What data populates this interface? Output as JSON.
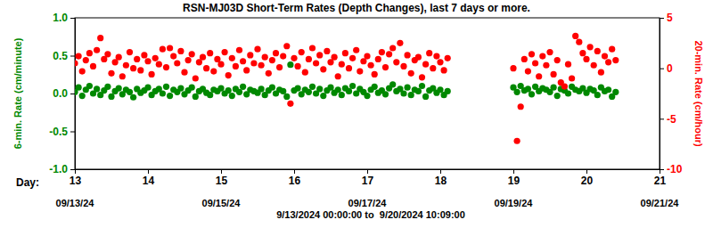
{
  "chart_data": {
    "type": "scatter",
    "title": "RSN-MJ03D Short-Term Rates (Depth Changes), last 7 days or more.",
    "subtitle": "9/13/2024 00:00:00 to  9/20/2024 10:09:00",
    "xlabel": "Day:",
    "ylabel": "6-min. Rate (cm/minute)",
    "y2label": "20-min. Rate (cm/hour)",
    "xlim": [
      13,
      21
    ],
    "xticks": [
      13,
      14,
      15,
      16,
      17,
      18,
      19,
      20,
      21
    ],
    "ylim": [
      -1.0,
      1.0
    ],
    "yticks": [
      {
        "value": -1.0,
        "label": "-1.0"
      },
      {
        "value": -0.5,
        "label": "-0.5"
      },
      {
        "value": 0,
        "label": "0.0"
      },
      {
        "value": 0.5,
        "label": "0.5"
      },
      {
        "value": 1.0,
        "label": "1.0"
      }
    ],
    "y2lim": [
      -10,
      5
    ],
    "y2ticks": [
      -10,
      -5,
      0,
      5
    ],
    "annotations": [
      {
        "x": 13,
        "text": "09/13/24"
      },
      {
        "x": 15,
        "text": "09/15/24"
      },
      {
        "x": 17,
        "text": "09/17/24"
      },
      {
        "x": 19,
        "text": "09/19/24"
      },
      {
        "x": 21,
        "text": "09/21/24"
      }
    ],
    "x": [
      13.0,
      13.05,
      13.1,
      13.15,
      13.2,
      13.25,
      13.3,
      13.35,
      13.4,
      13.45,
      13.5,
      13.55,
      13.6,
      13.65,
      13.7,
      13.75,
      13.8,
      13.85,
      13.9,
      13.95,
      14.0,
      14.05,
      14.1,
      14.15,
      14.2,
      14.25,
      14.3,
      14.35,
      14.4,
      14.45,
      14.5,
      14.55,
      14.6,
      14.65,
      14.7,
      14.75,
      14.8,
      14.85,
      14.9,
      14.95,
      15.0,
      15.05,
      15.1,
      15.15,
      15.2,
      15.25,
      15.3,
      15.35,
      15.4,
      15.45,
      15.5,
      15.55,
      15.6,
      15.65,
      15.7,
      15.75,
      15.8,
      15.85,
      15.9,
      15.95,
      16.0,
      16.05,
      16.1,
      16.15,
      16.2,
      16.25,
      16.3,
      16.35,
      16.4,
      16.45,
      16.5,
      16.55,
      16.6,
      16.65,
      16.7,
      16.75,
      16.8,
      16.85,
      16.9,
      16.95,
      17.0,
      17.05,
      17.1,
      17.15,
      17.2,
      17.25,
      17.3,
      17.35,
      17.4,
      17.45,
      17.5,
      17.55,
      17.6,
      17.65,
      17.7,
      17.75,
      17.8,
      17.85,
      17.9,
      17.95,
      18.0,
      18.05,
      18.1,
      19.0,
      19.05,
      19.1,
      19.15,
      19.2,
      19.25,
      19.3,
      19.35,
      19.4,
      19.45,
      19.5,
      19.55,
      19.6,
      19.65,
      19.7,
      19.75,
      19.8,
      19.85,
      19.9,
      19.95,
      20.0,
      20.05,
      20.1,
      20.15,
      20.2,
      20.25,
      20.3,
      20.35,
      20.4
    ],
    "series": [
      {
        "color": "#008800",
        "marker": "circle",
        "values": [
          0.02,
          0.08,
          -0.03,
          0.05,
          0.1,
          0.0,
          0.06,
          -0.02,
          0.04,
          0.09,
          -0.04,
          0.03,
          0.07,
          -0.01,
          0.05,
          0.02,
          -0.05,
          0.06,
          0.01,
          0.04,
          0.08,
          -0.02,
          0.03,
          0.06,
          0.0,
          0.09,
          -0.03,
          0.05,
          0.02,
          0.07,
          -0.01,
          0.04,
          0.08,
          -0.04,
          0.03,
          0.06,
          0.01,
          -0.02,
          0.05,
          0.03,
          0.07,
          0.0,
          0.04,
          -0.03,
          0.06,
          0.02,
          0.09,
          -0.01,
          0.05,
          0.03,
          0.01,
          0.06,
          -0.02,
          0.04,
          0.08,
          0.0,
          0.05,
          0.03,
          -0.04,
          0.38,
          0.04,
          0.07,
          -0.01,
          0.05,
          0.02,
          0.09,
          0.0,
          0.06,
          -0.03,
          0.04,
          0.08,
          0.01,
          0.05,
          -0.02,
          0.07,
          0.03,
          0.1,
          0.0,
          0.06,
          0.02,
          -0.03,
          0.05,
          0.09,
          0.01,
          0.04,
          -0.01,
          0.07,
          0.12,
          0.03,
          0.06,
          0.0,
          0.08,
          -0.02,
          0.05,
          0.03,
          0.1,
          -0.04,
          0.04,
          0.07,
          0.01,
          0.05,
          -0.02,
          0.03,
          0.08,
          0.02,
          0.1,
          0.04,
          0.06,
          -0.01,
          0.09,
          0.03,
          0.07,
          0.05,
          0.02,
          0.08,
          -0.03,
          0.06,
          0.04,
          0.0,
          0.09,
          0.05,
          0.03,
          0.07,
          0.01,
          0.06,
          0.04,
          -0.02,
          0.08,
          0.03,
          0.05,
          -0.04,
          0.02
        ]
      },
      {
        "color": "#ff0000",
        "marker": "circle",
        "axis": "y2",
        "values": [
          0.5,
          1.2,
          -0.3,
          0.8,
          1.5,
          0.2,
          1.8,
          3.0,
          0.9,
          1.4,
          -0.5,
          0.6,
          1.1,
          -0.8,
          0.3,
          1.6,
          0.0,
          0.9,
          -0.2,
          1.3,
          0.7,
          -0.6,
          1.0,
          0.4,
          1.9,
          0.1,
          2.0,
          1.2,
          0.5,
          1.7,
          -0.4,
          0.8,
          1.4,
          -1.0,
          0.6,
          1.1,
          0.0,
          1.5,
          -0.3,
          0.9,
          0.4,
          1.6,
          -0.7,
          1.0,
          0.2,
          1.8,
          0.7,
          -0.2,
          1.3,
          0.5,
          1.9,
          0.3,
          1.1,
          -0.5,
          0.8,
          1.5,
          0.1,
          1.2,
          2.2,
          -3.5,
          1.0,
          0.2,
          1.6,
          -0.4,
          0.9,
          2.0,
          0.5,
          1.3,
          -0.1,
          1.7,
          0.6,
          1.1,
          -0.8,
          0.4,
          1.5,
          0.0,
          1.0,
          1.8,
          -0.3,
          0.7,
          1.2,
          0.3,
          -0.6,
          0.9,
          1.6,
          0.1,
          1.4,
          2.0,
          0.6,
          2.5,
          0.2,
          1.3,
          -0.5,
          0.8,
          1.1,
          -0.9,
          0.4,
          1.5,
          0.0,
          1.2,
          0.6,
          -0.2,
          1.0,
          0.0,
          -7.2,
          -3.8,
          0.9,
          -0.3,
          1.4,
          0.5,
          -0.8,
          1.2,
          0.3,
          1.6,
          -0.6,
          0.8,
          -1.4,
          -1.8,
          0.4,
          -1.0,
          3.2,
          2.6,
          1.5,
          0.9,
          2.1,
          0.3,
          1.7,
          -0.4,
          1.2,
          0.6,
          1.9,
          0.8
        ]
      }
    ]
  }
}
